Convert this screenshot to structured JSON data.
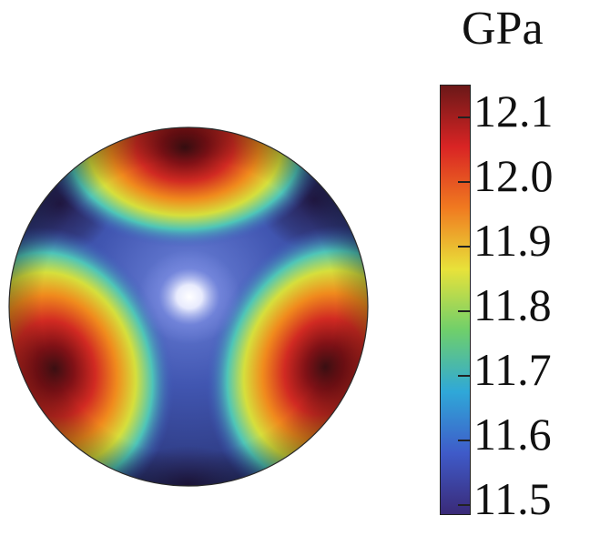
{
  "figure": {
    "unit": "GPa",
    "colorbar": {
      "ticks": [
        "12.1",
        "12.0",
        "11.9",
        "11.8",
        "11.7",
        "11.6",
        "11.5"
      ],
      "colors": [
        "#6b1818",
        "#d92424",
        "#f07a20",
        "#e8e23a",
        "#6fcf6b",
        "#2fa8d8",
        "#3f5bc9",
        "#3a2a78"
      ]
    },
    "sphere": {
      "background_color": "#3c4fa6",
      "lobe_colors": [
        "#3a0f12",
        "#c81f1f",
        "#ef8a1f",
        "#51c9c0",
        "#3f5bbd"
      ],
      "center_color": "#ffffff"
    }
  }
}
